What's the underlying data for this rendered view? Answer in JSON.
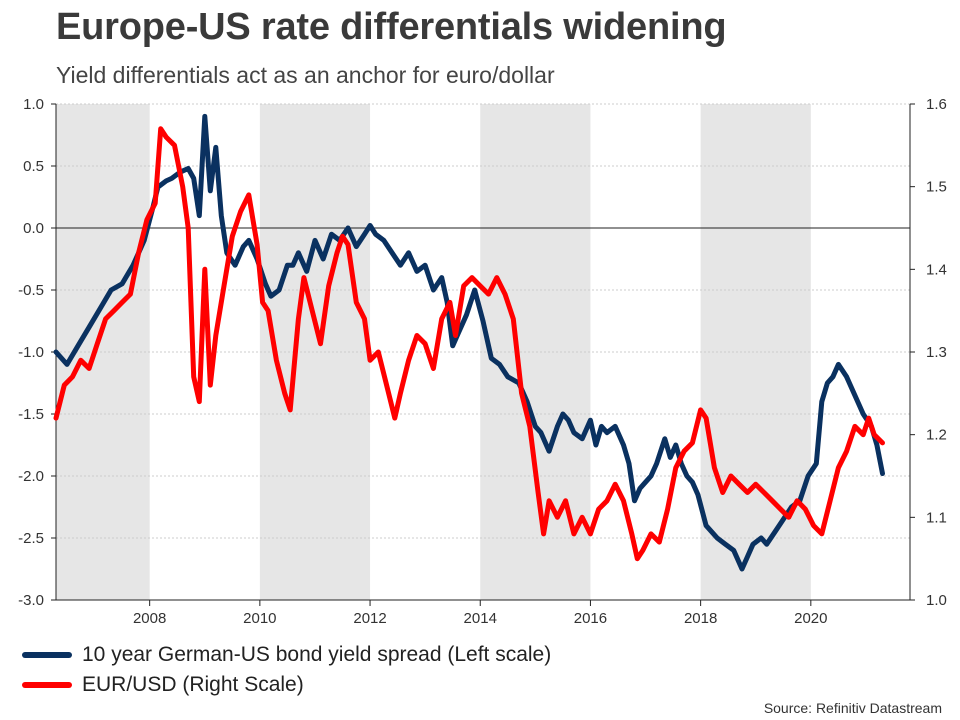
{
  "header": {
    "title": "Europe-US rate differentials widening",
    "subtitle": "Yield differentials act as an anchor for euro/dollar"
  },
  "footer": {
    "source": "Source: Refinitiv Datastream"
  },
  "colors": {
    "spread": "#0a3160",
    "eurusd": "#ff0000",
    "shade": "#e6e6e6",
    "grid": "#cccccc",
    "axis": "#222222",
    "text": "#333333"
  },
  "chart_data": {
    "type": "line",
    "title": "Europe-US rate differentials widening",
    "subtitle": "Yield differentials act as an anchor for euro/dollar",
    "xlim": [
      2006.3,
      2021.8
    ],
    "xticks": [
      2008,
      2010,
      2012,
      2014,
      2016,
      2018,
      2020
    ],
    "x_tick_labels": [
      "2008",
      "2010",
      "2012",
      "2014",
      "2016",
      "2018",
      "2020"
    ],
    "shaded_bands": [
      [
        2006.3,
        2008.0
      ],
      [
        2010.0,
        2012.0
      ],
      [
        2014.0,
        2016.0
      ],
      [
        2018.0,
        2020.0
      ]
    ],
    "left_axis": {
      "label": "10 year German-US bond yield spread",
      "ylim": [
        -3.0,
        1.0
      ],
      "ticks": [
        1.0,
        0.5,
        0.0,
        -0.5,
        -1.0,
        -1.5,
        -2.0,
        -2.5,
        -3.0
      ],
      "tick_labels": [
        "1.0",
        "0.5",
        "0.0",
        "-0.5",
        "-1.0",
        "-1.5",
        "-2.0",
        "-2.5",
        "-3.0"
      ]
    },
    "right_axis": {
      "label": "EUR/USD",
      "ylim": [
        1.0,
        1.6
      ],
      "ticks": [
        1.6,
        1.5,
        1.4,
        1.3,
        1.2,
        1.1,
        1.0
      ],
      "tick_labels": [
        "1.6",
        "1.5",
        "1.4",
        "1.3",
        "1.2",
        "1.1",
        "1.0"
      ]
    },
    "zero_line": 0.0,
    "legend_position": "bottom-left",
    "series": [
      {
        "name": "10 year German-US bond yield spread (Left scale)",
        "axis": "left",
        "color": "#0a3160",
        "x": [
          2006.3,
          2006.5,
          2006.7,
          2006.9,
          2007.1,
          2007.3,
          2007.5,
          2007.7,
          2007.9,
          2008.05,
          2008.15,
          2008.3,
          2008.4,
          2008.55,
          2008.7,
          2008.8,
          2008.9,
          2009.0,
          2009.1,
          2009.2,
          2009.3,
          2009.4,
          2009.55,
          2009.7,
          2009.8,
          2009.95,
          2010.1,
          2010.2,
          2010.35,
          2010.5,
          2010.6,
          2010.7,
          2010.85,
          2011.0,
          2011.15,
          2011.3,
          2011.45,
          2011.6,
          2011.75,
          2011.9,
          2012.0,
          2012.1,
          2012.25,
          2012.4,
          2012.55,
          2012.7,
          2012.85,
          2013.0,
          2013.15,
          2013.3,
          2013.4,
          2013.5,
          2013.6,
          2013.75,
          2013.9,
          2014.05,
          2014.2,
          2014.35,
          2014.5,
          2014.7,
          2014.85,
          2015.0,
          2015.1,
          2015.25,
          2015.4,
          2015.5,
          2015.6,
          2015.7,
          2015.85,
          2016.0,
          2016.1,
          2016.2,
          2016.3,
          2016.45,
          2016.6,
          2016.7,
          2016.8,
          2016.9,
          2017.0,
          2017.1,
          2017.2,
          2017.35,
          2017.45,
          2017.55,
          2017.65,
          2017.75,
          2017.85,
          2017.95,
          2018.1,
          2018.2,
          2018.3,
          2018.45,
          2018.6,
          2018.75,
          2018.85,
          2018.95,
          2019.1,
          2019.2,
          2019.35,
          2019.5,
          2019.65,
          2019.8,
          2019.95,
          2020.1,
          2020.2,
          2020.3,
          2020.4,
          2020.5,
          2020.65,
          2020.8,
          2020.95,
          2021.1,
          2021.2,
          2021.3
        ],
        "values": [
          -1.0,
          -1.1,
          -0.95,
          -0.8,
          -0.65,
          -0.5,
          -0.45,
          -0.3,
          -0.1,
          0.15,
          0.33,
          0.38,
          0.4,
          0.45,
          0.48,
          0.4,
          0.1,
          0.9,
          0.3,
          0.65,
          0.1,
          -0.2,
          -0.3,
          -0.15,
          -0.1,
          -0.25,
          -0.45,
          -0.55,
          -0.5,
          -0.3,
          -0.3,
          -0.2,
          -0.35,
          -0.1,
          -0.25,
          -0.05,
          -0.1,
          0.0,
          -0.15,
          -0.05,
          0.02,
          -0.05,
          -0.1,
          -0.2,
          -0.3,
          -0.2,
          -0.35,
          -0.3,
          -0.5,
          -0.4,
          -0.6,
          -0.95,
          -0.85,
          -0.7,
          -0.5,
          -0.75,
          -1.05,
          -1.1,
          -1.2,
          -1.25,
          -1.4,
          -1.6,
          -1.65,
          -1.8,
          -1.6,
          -1.5,
          -1.55,
          -1.65,
          -1.7,
          -1.55,
          -1.75,
          -1.6,
          -1.65,
          -1.6,
          -1.75,
          -1.9,
          -2.2,
          -2.1,
          -2.05,
          -2.0,
          -1.9,
          -1.7,
          -1.85,
          -1.75,
          -1.9,
          -2.0,
          -2.05,
          -2.15,
          -2.4,
          -2.45,
          -2.5,
          -2.55,
          -2.6,
          -2.75,
          -2.65,
          -2.55,
          -2.5,
          -2.55,
          -2.45,
          -2.35,
          -2.25,
          -2.2,
          -2.0,
          -1.9,
          -1.4,
          -1.25,
          -1.2,
          -1.1,
          -1.2,
          -1.35,
          -1.5,
          -1.6,
          -1.75,
          -1.98
        ]
      },
      {
        "name": "EUR/USD (Right Scale)",
        "axis": "right",
        "color": "#ff0000",
        "x": [
          2006.3,
          2006.45,
          2006.6,
          2006.75,
          2006.9,
          2007.05,
          2007.2,
          2007.35,
          2007.5,
          2007.65,
          2007.8,
          2007.95,
          2008.1,
          2008.2,
          2008.3,
          2008.45,
          2008.6,
          2008.7,
          2008.8,
          2008.9,
          2009.0,
          2009.1,
          2009.2,
          2009.35,
          2009.5,
          2009.65,
          2009.8,
          2009.95,
          2010.05,
          2010.15,
          2010.3,
          2010.45,
          2010.55,
          2010.7,
          2010.8,
          2010.95,
          2011.1,
          2011.25,
          2011.4,
          2011.5,
          2011.6,
          2011.75,
          2011.9,
          2012.0,
          2012.15,
          2012.3,
          2012.45,
          2012.55,
          2012.7,
          2012.85,
          2013.0,
          2013.15,
          2013.3,
          2013.45,
          2013.55,
          2013.7,
          2013.85,
          2014.0,
          2014.15,
          2014.3,
          2014.45,
          2014.6,
          2014.75,
          2014.9,
          2015.05,
          2015.15,
          2015.25,
          2015.4,
          2015.55,
          2015.7,
          2015.85,
          2016.0,
          2016.15,
          2016.3,
          2016.45,
          2016.6,
          2016.75,
          2016.85,
          2016.95,
          2017.1,
          2017.25,
          2017.4,
          2017.55,
          2017.7,
          2017.85,
          2018.0,
          2018.1,
          2018.25,
          2018.4,
          2018.55,
          2018.7,
          2018.85,
          2019.0,
          2019.15,
          2019.3,
          2019.45,
          2019.6,
          2019.75,
          2019.9,
          2020.05,
          2020.2,
          2020.35,
          2020.5,
          2020.65,
          2020.8,
          2020.95,
          2021.05,
          2021.15,
          2021.3
        ],
        "values": [
          1.22,
          1.26,
          1.27,
          1.29,
          1.28,
          1.31,
          1.34,
          1.35,
          1.36,
          1.37,
          1.42,
          1.46,
          1.48,
          1.57,
          1.56,
          1.55,
          1.5,
          1.45,
          1.27,
          1.24,
          1.4,
          1.26,
          1.32,
          1.38,
          1.44,
          1.47,
          1.49,
          1.43,
          1.36,
          1.35,
          1.29,
          1.25,
          1.23,
          1.34,
          1.39,
          1.35,
          1.31,
          1.38,
          1.42,
          1.44,
          1.43,
          1.36,
          1.34,
          1.29,
          1.3,
          1.26,
          1.22,
          1.25,
          1.29,
          1.32,
          1.31,
          1.28,
          1.34,
          1.36,
          1.32,
          1.38,
          1.39,
          1.38,
          1.37,
          1.39,
          1.37,
          1.34,
          1.25,
          1.21,
          1.13,
          1.08,
          1.12,
          1.1,
          1.12,
          1.08,
          1.1,
          1.08,
          1.11,
          1.12,
          1.14,
          1.12,
          1.08,
          1.05,
          1.06,
          1.08,
          1.07,
          1.11,
          1.16,
          1.18,
          1.19,
          1.23,
          1.22,
          1.16,
          1.13,
          1.15,
          1.14,
          1.13,
          1.14,
          1.13,
          1.12,
          1.11,
          1.1,
          1.12,
          1.11,
          1.09,
          1.08,
          1.12,
          1.16,
          1.18,
          1.21,
          1.2,
          1.22,
          1.2,
          1.19
        ]
      }
    ]
  }
}
